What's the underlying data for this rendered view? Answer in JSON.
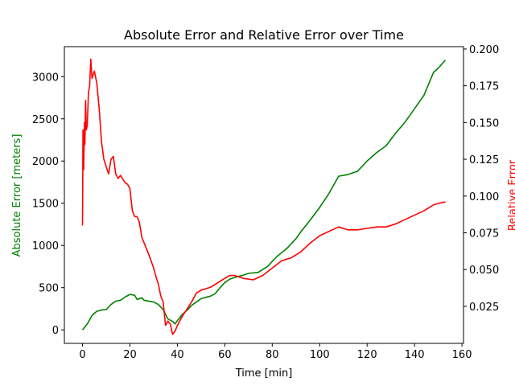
{
  "chart_data": {
    "type": "line",
    "title": "Absolute Error and Relative Error over Time",
    "xlabel": "Time [min]",
    "ylabel": "Absolute Error [meters]",
    "y2label": "Relative Error",
    "ylabel_color": "green",
    "y2label_color": "red",
    "xlim": [
      -7.65,
      160.65
    ],
    "ylim": [
      -160,
      3355
    ],
    "y2lim": [
      -0.0002,
      0.2016
    ],
    "xticks": [
      0,
      20,
      40,
      60,
      80,
      100,
      120,
      140,
      160
    ],
    "yticks": [
      0,
      500,
      1000,
      1500,
      2000,
      2500,
      3000
    ],
    "y2ticks": [
      0.025,
      {
        "value": 0.05,
        "label": "0.050"
      },
      0.075,
      {
        "value": 0.1,
        "label": "0.100"
      },
      0.125,
      {
        "value": 0.15,
        "label": "0.150"
      },
      0.175,
      {
        "value": 0.2,
        "label": "0.200"
      }
    ],
    "series": [
      {
        "color": "green",
        "axis": "y",
        "x": [
          0,
          2,
          4,
          6,
          8,
          10,
          12,
          14,
          16,
          18,
          20,
          22,
          23,
          25,
          26,
          30,
          32,
          34,
          36,
          38,
          39,
          40,
          42,
          44,
          46,
          48,
          50,
          54,
          56,
          58,
          60,
          62,
          64,
          68,
          70,
          74,
          78,
          82,
          86,
          90,
          92,
          96,
          100,
          104,
          108,
          112,
          116,
          120,
          124,
          128,
          132,
          136,
          140,
          144,
          148,
          150,
          153
        ],
        "values": [
          0,
          70,
          170,
          220,
          235,
          240,
          300,
          340,
          350,
          390,
          420,
          410,
          360,
          380,
          350,
          330,
          300,
          240,
          130,
          100,
          70,
          110,
          180,
          230,
          290,
          330,
          370,
          400,
          430,
          500,
          560,
          600,
          620,
          650,
          670,
          680,
          750,
          870,
          960,
          1080,
          1160,
          1300,
          1450,
          1620,
          1820,
          1840,
          1880,
          2000,
          2100,
          2180,
          2330,
          2460,
          2620,
          2780,
          3050,
          3100,
          3195
        ]
      },
      {
        "color": "red",
        "axis": "y2",
        "x": [
          0,
          0.2,
          0.5,
          0.8,
          1,
          1.3,
          1.6,
          2,
          2.5,
          3,
          3.5,
          4,
          5,
          6,
          7,
          8,
          9,
          10,
          11,
          12,
          13,
          14,
          15,
          16,
          18,
          19,
          20,
          21,
          22,
          23,
          24,
          25,
          26,
          28,
          30,
          31,
          32,
          33,
          34,
          35,
          36,
          37,
          38,
          39,
          40,
          42,
          44,
          46,
          48,
          50,
          54,
          58,
          62,
          64,
          68,
          72,
          76,
          80,
          84,
          88,
          92,
          96,
          100,
          104,
          108,
          112,
          116,
          120,
          124,
          128,
          132,
          136,
          140,
          144,
          148,
          150,
          153
        ],
        "values": [
          0.08,
          0.145,
          0.118,
          0.15,
          0.135,
          0.165,
          0.145,
          0.148,
          0.17,
          0.175,
          0.193,
          0.18,
          0.185,
          0.177,
          0.16,
          0.137,
          0.125,
          0.12,
          0.115,
          0.125,
          0.127,
          0.115,
          0.112,
          0.114,
          0.109,
          0.108,
          0.105,
          0.09,
          0.086,
          0.086,
          0.082,
          0.072,
          0.068,
          0.06,
          0.051,
          0.045,
          0.04,
          0.032,
          0.028,
          0.012,
          0.015,
          0.013,
          0.006,
          0.008,
          0.012,
          0.018,
          0.023,
          0.028,
          0.034,
          0.036,
          0.038,
          0.042,
          0.046,
          0.046,
          0.044,
          0.043,
          0.046,
          0.051,
          0.056,
          0.058,
          0.062,
          0.068,
          0.073,
          0.076,
          0.079,
          0.077,
          0.077,
          0.078,
          0.079,
          0.079,
          0.081,
          0.084,
          0.087,
          0.09,
          0.094,
          0.095,
          0.096
        ]
      }
    ]
  }
}
